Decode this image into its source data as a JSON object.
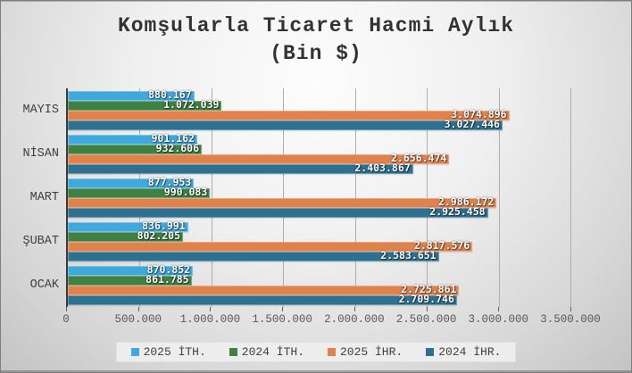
{
  "chart_data": {
    "type": "bar",
    "orientation": "horizontal",
    "title_line1": "Komşularla Ticaret Hacmi Aylık",
    "title_line2": "(Bin $)",
    "categories": [
      "MAYIS",
      "NİSAN",
      "MART",
      "ŞUBAT",
      "OCAK"
    ],
    "series": [
      {
        "name": "2025 İTH.",
        "color": "#3FA9DC",
        "values": [
          880167,
          901162,
          877953,
          836991,
          870852
        ],
        "labels": [
          "880.167",
          "901.162",
          "877.953",
          "836.991",
          "870.852"
        ]
      },
      {
        "name": "2024 İTH.",
        "color": "#3E8142",
        "values": [
          1072039,
          932606,
          990083,
          802205,
          861785
        ],
        "labels": [
          "1.072.039",
          "932.606",
          "990.083",
          "802.205",
          "861.785"
        ]
      },
      {
        "name": "2025 İHR.",
        "color": "#E0824C",
        "values": [
          3074896,
          2656474,
          2986172,
          2817576,
          2725861
        ],
        "labels": [
          "3.074.896",
          "2.656.474",
          "2.986.172",
          "2.817.576",
          "2.725.861"
        ]
      },
      {
        "name": "2024 İHR.",
        "color": "#2E7090",
        "values": [
          3027446,
          2403867,
          2925458,
          2583651,
          2709746
        ],
        "labels": [
          "3.027.446",
          "2.403.867",
          "2.925.458",
          "2.583.651",
          "2.709.746"
        ]
      }
    ],
    "x_axis": {
      "min": 0,
      "max": 3500000,
      "tick_labels": [
        "0",
        "500.000",
        "1.000.000",
        "1.500.000",
        "2.000.000",
        "2.500.000",
        "3.000.000",
        "3.500.000"
      ]
    },
    "legend_position": "bottom",
    "grid": true
  }
}
